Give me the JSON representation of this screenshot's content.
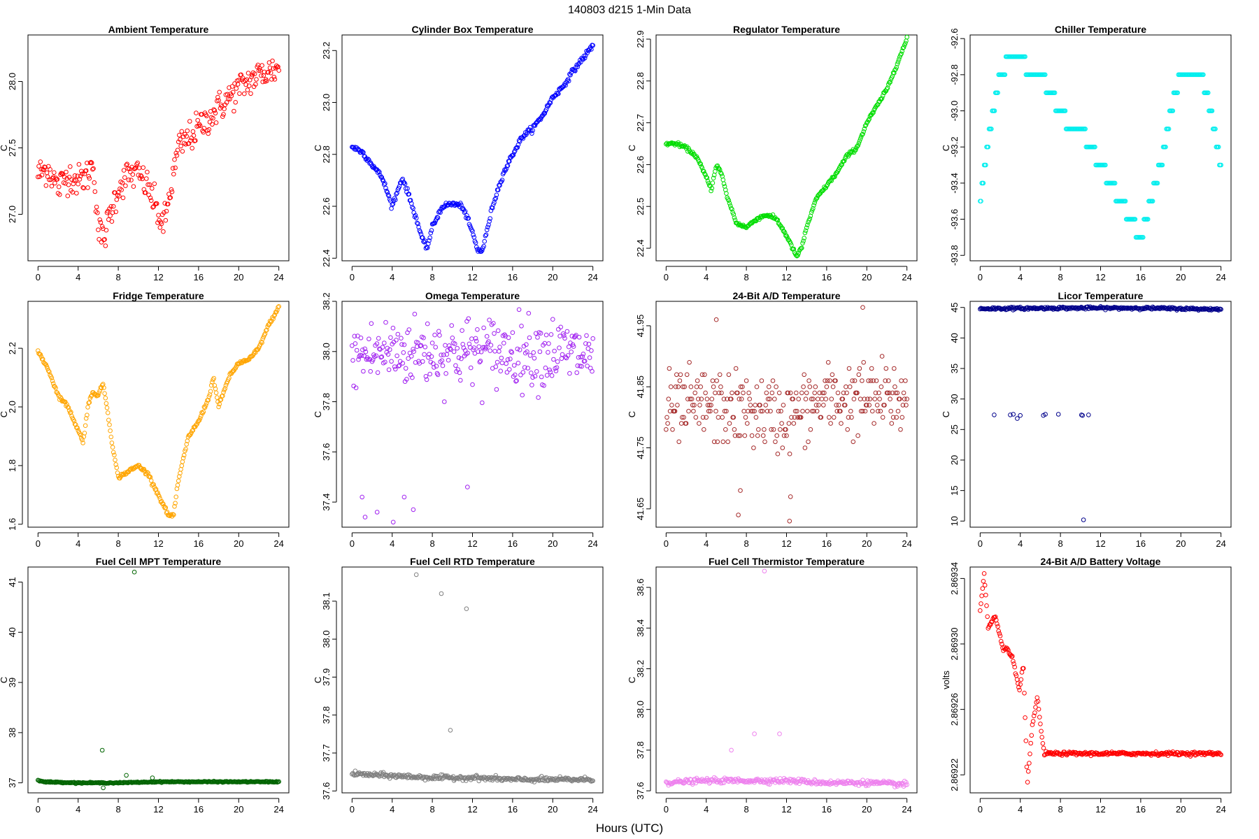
{
  "figure": {
    "title": "140803   d215   1-Min Data",
    "xlabel": "Hours (UTC)"
  },
  "chart_data": [
    {
      "type": "scatter",
      "title": "Ambient Temperature",
      "ylabel": "C",
      "color": "#ff0000",
      "xlim": [
        -1,
        25
      ],
      "ylim": [
        26.65,
        28.35
      ],
      "xticks": [
        0,
        4,
        8,
        12,
        16,
        20,
        24
      ],
      "yticks": [
        27.0,
        27.5,
        28.0
      ],
      "ytick_labels": [
        "27.0",
        "27.5",
        "28.0"
      ],
      "x": [
        0,
        1,
        2,
        3,
        4,
        5,
        5.5,
        6,
        6.5,
        7,
        8,
        9,
        10,
        11,
        12,
        12.5,
        13,
        13.5,
        14,
        16,
        18,
        20,
        22,
        24
      ],
      "y": [
        27.3,
        27.35,
        27.2,
        27.3,
        27.25,
        27.3,
        27.4,
        26.9,
        26.8,
        26.95,
        27.2,
        27.3,
        27.3,
        27.2,
        27.0,
        26.9,
        27.1,
        27.3,
        27.5,
        27.65,
        27.8,
        27.95,
        28.05,
        28.1
      ],
      "jitter": 0.12
    },
    {
      "type": "scatter",
      "title": "Cylinder Box Temperature",
      "ylabel": "C",
      "color": "#0000ff",
      "xlim": [
        -1,
        25
      ],
      "ylim": [
        22.39,
        23.26
      ],
      "xticks": [
        0,
        4,
        8,
        12,
        16,
        20,
        24
      ],
      "yticks": [
        22.4,
        22.6,
        22.8,
        23.0,
        23.2
      ],
      "ytick_labels": [
        "22.4",
        "22.6",
        "22.8",
        "23.0",
        "23.2"
      ],
      "x": [
        0,
        1,
        2,
        3,
        4,
        5,
        5.5,
        6,
        6.5,
        7,
        7.5,
        8,
        9,
        10,
        11,
        12,
        12.5,
        13,
        14,
        15,
        16,
        17,
        18,
        19,
        20,
        21,
        22,
        23,
        24
      ],
      "y": [
        22.83,
        22.81,
        22.76,
        22.71,
        22.6,
        22.71,
        22.66,
        22.6,
        22.54,
        22.47,
        22.44,
        22.52,
        22.6,
        22.61,
        22.6,
        22.5,
        22.43,
        22.43,
        22.6,
        22.72,
        22.8,
        22.87,
        22.9,
        22.95,
        23.02,
        23.06,
        23.12,
        23.17,
        23.22
      ],
      "jitter": 0.01
    },
    {
      "type": "scatter",
      "title": "Regulator Temperature",
      "ylabel": "C",
      "color": "#00dd00",
      "xlim": [
        -1,
        25
      ],
      "ylim": [
        22.37,
        22.91
      ],
      "xticks": [
        0,
        4,
        8,
        12,
        16,
        20,
        24
      ],
      "yticks": [
        22.4,
        22.5,
        22.6,
        22.7,
        22.8,
        22.9
      ],
      "ytick_labels": [
        "22.4",
        "22.5",
        "22.6",
        "22.7",
        "22.8",
        "22.9"
      ],
      "x": [
        0,
        1,
        2,
        3,
        4,
        4.5,
        5,
        5.5,
        6,
        7,
        8,
        9,
        10,
        11,
        12,
        13,
        13.5,
        14,
        15,
        16,
        17,
        18,
        19,
        20,
        21,
        22,
        23,
        24
      ],
      "y": [
        22.65,
        22.65,
        22.64,
        22.62,
        22.57,
        22.54,
        22.6,
        22.58,
        22.53,
        22.46,
        22.45,
        22.47,
        22.48,
        22.47,
        22.43,
        22.38,
        22.4,
        22.45,
        22.52,
        22.55,
        22.58,
        22.62,
        22.64,
        22.7,
        22.74,
        22.78,
        22.84,
        22.9
      ],
      "jitter": 0.004
    },
    {
      "type": "scatter",
      "title": "Chiller Temperature",
      "ylabel": "C",
      "color": "#00eeee",
      "xlim": [
        -1,
        25
      ],
      "ylim": [
        -93.83,
        -92.58
      ],
      "xticks": [
        0,
        4,
        8,
        12,
        16,
        20,
        24
      ],
      "yticks": [
        -93.8,
        -93.6,
        -93.4,
        -93.2,
        -93.0,
        -92.8,
        -92.6
      ],
      "ytick_labels": [
        "-93.8",
        "-93.6",
        "-93.4",
        "-93.2",
        "-93.0",
        "-92.8",
        "-92.6"
      ],
      "x": [
        0,
        1,
        2,
        3,
        4,
        5,
        6,
        7,
        8,
        9,
        10,
        11,
        12,
        13,
        14,
        15,
        16,
        17,
        18,
        19,
        20,
        21,
        22,
        23,
        24
      ],
      "y": [
        -93.5,
        -93.1,
        -92.8,
        -92.7,
        -92.7,
        -92.8,
        -92.8,
        -92.9,
        -93.0,
        -93.1,
        -93.1,
        -93.2,
        -93.3,
        -93.4,
        -93.5,
        -93.6,
        -93.7,
        -93.5,
        -93.3,
        -93.0,
        -92.8,
        -92.8,
        -92.8,
        -93.0,
        -93.3
      ],
      "quantize": 0.1
    },
    {
      "type": "scatter",
      "title": "Fridge Temperature",
      "ylabel": "C",
      "color": "#ffa500",
      "xlim": [
        -1,
        25
      ],
      "ylim": [
        1.59,
        2.36
      ],
      "xticks": [
        0,
        4,
        8,
        12,
        16,
        20,
        24
      ],
      "yticks": [
        1.6,
        1.8,
        2.0,
        2.2
      ],
      "ytick_labels": [
        "1.6",
        "1.8",
        "2.0",
        "2.2"
      ],
      "x": [
        0,
        1,
        2,
        3,
        4,
        4.5,
        5,
        5.5,
        6,
        6.5,
        7,
        7.5,
        8,
        9,
        10,
        11,
        12,
        13,
        13.5,
        14,
        15,
        16,
        17,
        17.5,
        18,
        19,
        20,
        21,
        22,
        23,
        24
      ],
      "y": [
        2.19,
        2.13,
        2.04,
        2.0,
        1.92,
        1.88,
        2.01,
        2.05,
        2.04,
        2.08,
        1.97,
        1.85,
        1.76,
        1.78,
        1.8,
        1.77,
        1.7,
        1.63,
        1.63,
        1.75,
        1.9,
        1.95,
        2.03,
        2.1,
        2.0,
        2.1,
        2.15,
        2.16,
        2.2,
        2.28,
        2.34
      ],
      "jitter": 0.006
    },
    {
      "type": "scatter",
      "title": "Omega Temperature",
      "ylabel": "C",
      "color": "#a020f0",
      "xlim": [
        -1,
        25
      ],
      "ylim": [
        37.3,
        38.2
      ],
      "xticks": [
        0,
        4,
        8,
        12,
        16,
        20,
        24
      ],
      "yticks": [
        37.4,
        37.6,
        37.8,
        38.0,
        38.2
      ],
      "ytick_labels": [
        "37.4",
        "37.6",
        "37.8",
        "38.0",
        "38.2"
      ],
      "x": [
        0,
        4,
        8,
        12,
        16,
        20,
        24
      ],
      "y": [
        37.98,
        38.0,
        38.0,
        38.0,
        38.0,
        38.0,
        37.98
      ],
      "jitter": 0.14,
      "outliers_x": [
        1,
        1.3,
        2.5,
        4.1,
        5.2,
        6.1,
        11.5
      ],
      "outliers_y": [
        37.42,
        37.34,
        37.36,
        37.32,
        37.42,
        37.37,
        37.46
      ]
    },
    {
      "type": "scatter",
      "title": "24-Bit A/D Temperature",
      "ylabel": "C",
      "color": "#a52a2a",
      "xlim": [
        -1,
        25
      ],
      "ylim": [
        41.62,
        41.99
      ],
      "xticks": [
        0,
        4,
        8,
        12,
        16,
        20,
        24
      ],
      "yticks": [
        41.65,
        41.75,
        41.85,
        41.95
      ],
      "ytick_labels": [
        "41.65",
        "41.75",
        "41.85",
        "41.95"
      ],
      "x": [
        0,
        4,
        8,
        12,
        16,
        20,
        24
      ],
      "y": [
        41.81,
        41.82,
        41.81,
        41.8,
        41.83,
        41.83,
        41.83
      ],
      "jitter": 0.06,
      "quantize": 0.01,
      "outliers_x": [
        7.2,
        7.4,
        12.3,
        12.4,
        19.6,
        5.0
      ],
      "outliers_y": [
        41.64,
        41.68,
        41.63,
        41.67,
        41.98,
        41.96
      ]
    },
    {
      "type": "scatter",
      "title": "Licor Temperature",
      "ylabel": "C",
      "color": "#00008b",
      "xlim": [
        -1,
        25
      ],
      "ylim": [
        9,
        46
      ],
      "xticks": [
        0,
        4,
        8,
        12,
        16,
        20,
        24
      ],
      "yticks": [
        10,
        15,
        20,
        25,
        30,
        35,
        40,
        45
      ],
      "ytick_labels": [
        "10",
        "15",
        "20",
        "25",
        "30",
        "35",
        "40",
        "45"
      ],
      "x": [
        0,
        8,
        16,
        24
      ],
      "y": [
        44.8,
        44.9,
        44.9,
        44.7
      ],
      "jitter": 0.2,
      "outliers_x": [
        1.4,
        3.0,
        3.3,
        3.7,
        4.0,
        6.3,
        6.5,
        7.8,
        10.1,
        10.2,
        10.3,
        10.8
      ],
      "outliers_y": [
        27.4,
        27.4,
        27.5,
        26.8,
        27.3,
        27.3,
        27.5,
        27.5,
        27.4,
        27.3,
        10.2,
        27.4
      ]
    },
    {
      "type": "scatter",
      "title": "Fuel Cell MPT Temperature",
      "ylabel": "C",
      "color": "#006400",
      "xlim": [
        -1,
        25
      ],
      "ylim": [
        36.8,
        41.3
      ],
      "xticks": [
        0,
        4,
        8,
        12,
        16,
        20,
        24
      ],
      "yticks": [
        37,
        38,
        39,
        40,
        41
      ],
      "ytick_labels": [
        "37",
        "38",
        "39",
        "40",
        "41"
      ],
      "x": [
        0,
        0.5,
        4,
        8,
        12,
        16,
        20,
        24
      ],
      "y": [
        37.06,
        37.02,
        37.0,
        37.0,
        37.02,
        37.02,
        37.02,
        37.02
      ],
      "jitter": 0.01,
      "outliers_x": [
        6.4,
        6.5,
        9.6,
        8.8,
        11.4
      ],
      "outliers_y": [
        37.65,
        36.9,
        41.2,
        37.15,
        37.1
      ]
    },
    {
      "type": "scatter",
      "title": "Fuel Cell RTD Temperature",
      "ylabel": "C",
      "color": "#808080",
      "xlim": [
        -1,
        25
      ],
      "ylim": [
        37.595,
        38.19
      ],
      "xticks": [
        0,
        4,
        8,
        12,
        16,
        20,
        24
      ],
      "yticks": [
        37.6,
        37.7,
        37.8,
        37.9,
        38.0,
        38.1
      ],
      "ytick_labels": [
        "37.6",
        "37.7",
        "37.8",
        "37.9",
        "38.0",
        "38.1"
      ],
      "x": [
        0,
        4,
        8,
        12,
        16,
        20,
        24
      ],
      "y": [
        37.645,
        37.64,
        37.635,
        37.635,
        37.63,
        37.63,
        37.63
      ],
      "jitter": 0.006,
      "outliers_x": [
        6.4,
        8.9,
        9.8,
        11.4
      ],
      "outliers_y": [
        38.17,
        38.12,
        37.76,
        38.08
      ]
    },
    {
      "type": "scatter",
      "title": "Fuel Cell Thermistor Temperature",
      "ylabel": "C",
      "color": "#ee82ee",
      "xlim": [
        -1,
        25
      ],
      "ylim": [
        37.59,
        38.7
      ],
      "xticks": [
        0,
        4,
        8,
        12,
        16,
        20,
        24
      ],
      "yticks": [
        37.6,
        37.8,
        38.0,
        38.2,
        38.4,
        38.6
      ],
      "ytick_labels": [
        "37.6",
        "37.8",
        "38.0",
        "38.2",
        "38.4",
        "38.6"
      ],
      "x": [
        0,
        4,
        8,
        12,
        16,
        20,
        24
      ],
      "y": [
        37.64,
        37.65,
        37.65,
        37.65,
        37.64,
        37.64,
        37.63
      ],
      "jitter": 0.012,
      "outliers_x": [
        6.5,
        8.8,
        9.8,
        11.3
      ],
      "outliers_y": [
        37.8,
        37.88,
        38.68,
        37.88
      ]
    },
    {
      "type": "scatter",
      "title": "24-Bit A/D Battery Voltage",
      "ylabel": "volts",
      "color": "#ff0000",
      "xlim": [
        -1,
        25
      ],
      "ylim": [
        2.869209,
        2.869347
      ],
      "xticks": [
        0,
        4,
        8,
        12,
        16,
        20,
        24
      ],
      "yticks": [
        2.86922,
        2.86926,
        2.8693,
        2.86934
      ],
      "ytick_labels": [
        "2.86922",
        "2.86926",
        "2.86930",
        "2.86934"
      ],
      "x": [
        0,
        0.4,
        0.8,
        1.5,
        2.3,
        2.6,
        3.2,
        3.9,
        4.3,
        4.7,
        5.2,
        5.7,
        6.1,
        6.4,
        10,
        24
      ],
      "y": [
        2.86932,
        2.869343,
        2.86931,
        2.869317,
        2.869296,
        2.869298,
        2.869292,
        2.869271,
        2.869288,
        2.869214,
        2.86925,
        2.869268,
        2.869245,
        2.869233,
        2.869233,
        2.869233
      ],
      "jitter": 1e-06
    }
  ]
}
